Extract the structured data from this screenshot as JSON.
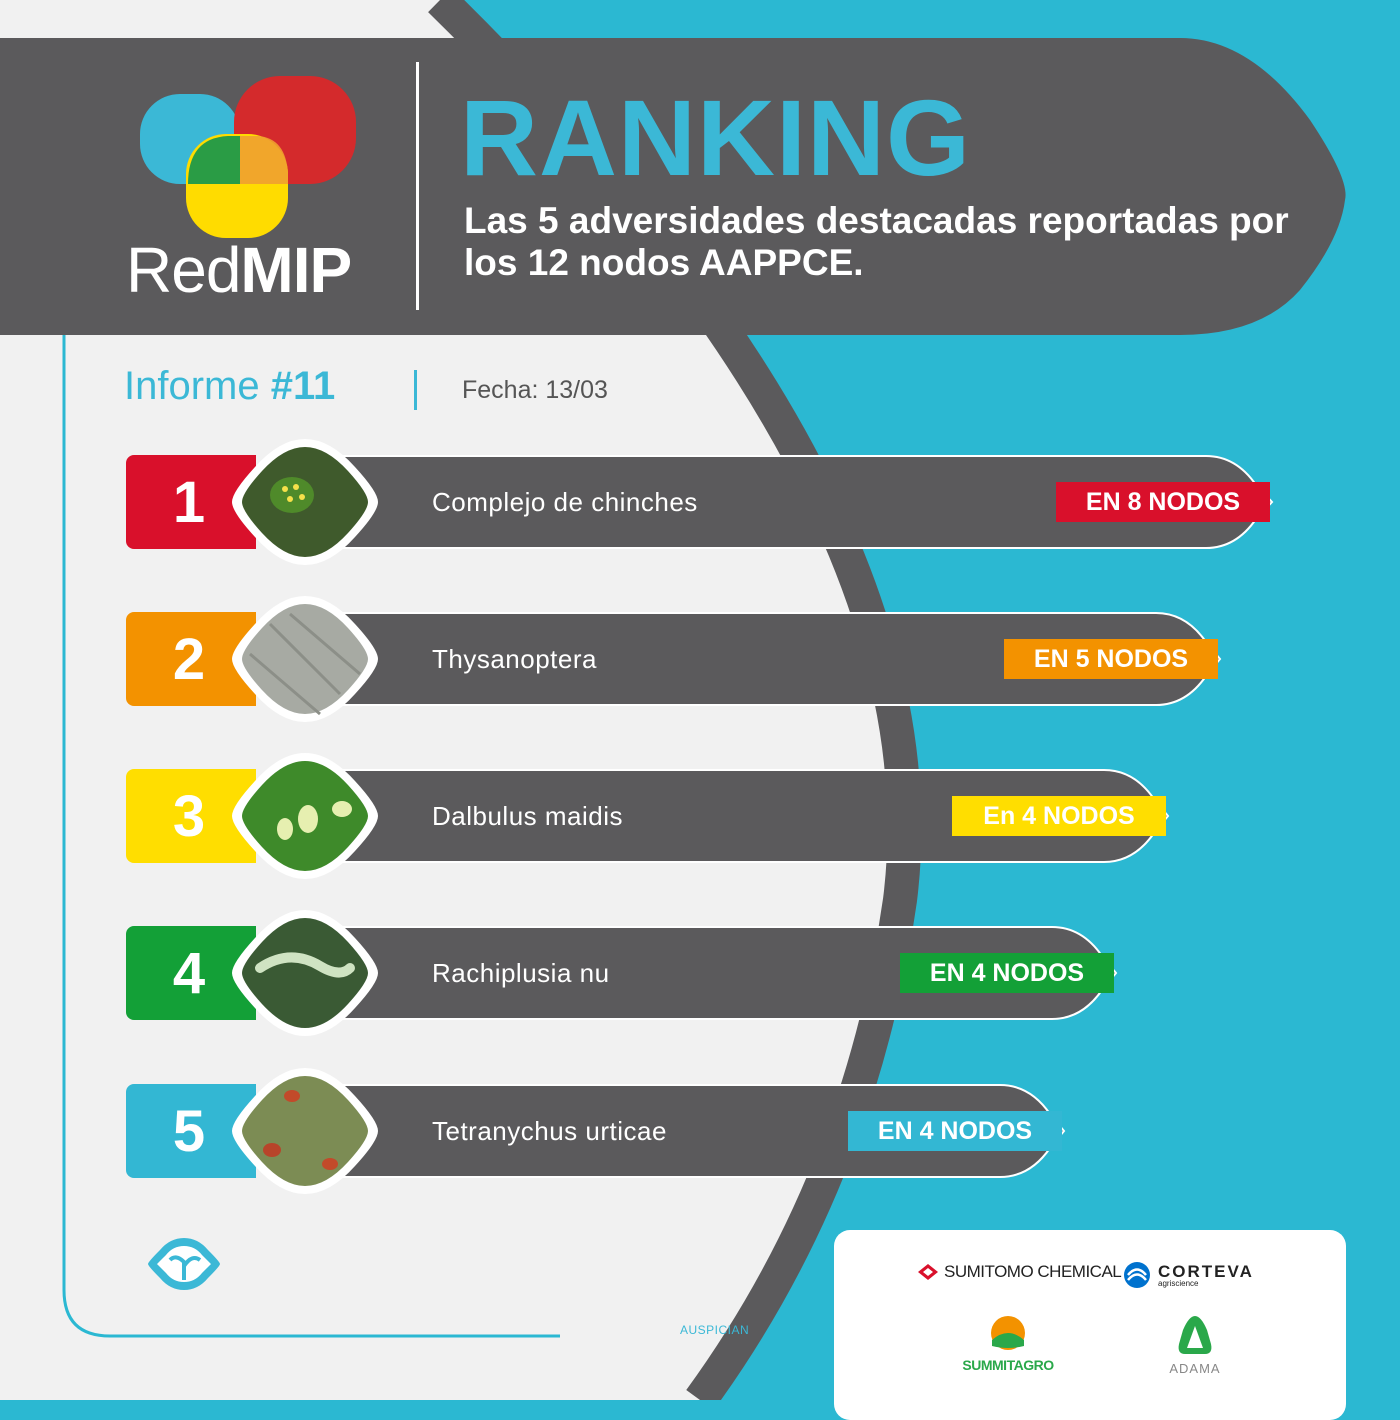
{
  "header": {
    "logo_light": "Red",
    "logo_bold": "MIP",
    "title": "RANKING",
    "subtitle": "Las 5 adversidades destacadas reportadas por los 12 nodos AAPPCE."
  },
  "report": {
    "label": "Informe",
    "number": "#11",
    "date": "Fecha: 13/03"
  },
  "ranking": [
    {
      "rank": "1",
      "name": "Complejo de chinches",
      "badge": "EN 8 NODOS",
      "color": "#d9102b"
    },
    {
      "rank": "2",
      "name": "Thysanoptera",
      "badge": "EN 5 NODOS",
      "color": "#f39200"
    },
    {
      "rank": "3",
      "name": "Dalbulus maidis",
      "badge": "En 4 NODOS",
      "color": "#ffde00"
    },
    {
      "rank": "4",
      "name": "Rachiplusia nu",
      "badge": "EN 4 NODOS",
      "color": "#13a037"
    },
    {
      "rank": "5",
      "name": "Tetranychus urticae",
      "badge": "EN 4 NODOS",
      "color": "#33b7d3"
    }
  ],
  "sponsors": {
    "label": "AUSPICIAN",
    "sumitomo": "SUMITOMO CHEMICAL",
    "corteva": "CORTEVA",
    "corteva_sub": "agriscience",
    "summit": "SUMMITAGRO",
    "adama": "ADAMA"
  },
  "colors": {
    "dark_gray": "#5b5a5c",
    "light_bg": "#f1f1f1",
    "cyan": "#2bb8d2",
    "title_blue": "#3bb8d6"
  }
}
